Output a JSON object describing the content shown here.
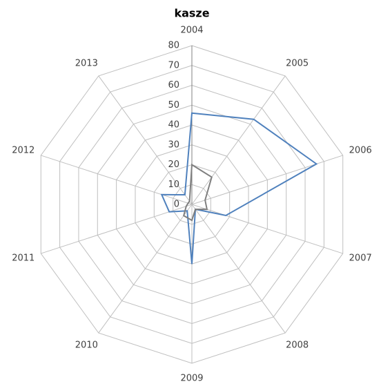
{
  "chart_data": {
    "type": "radar",
    "title": "kasze",
    "categories": [
      "2004",
      "2005",
      "2006",
      "2007",
      "2008",
      "2009",
      "2010",
      "2011",
      "2012",
      "2013"
    ],
    "series": [
      {
        "color": "#4f81bd",
        "values": [
          46,
          53,
          66,
          18,
          3,
          30,
          4,
          12,
          16,
          6
        ]
      },
      {
        "color": "#7f7f7f",
        "values": [
          20,
          17,
          7,
          8,
          3,
          8,
          7,
          3,
          2,
          2
        ]
      }
    ],
    "ylim": [
      0,
      80
    ],
    "yticks": [
      0,
      10,
      20,
      30,
      40,
      50,
      60,
      70,
      80
    ],
    "grid": true
  }
}
